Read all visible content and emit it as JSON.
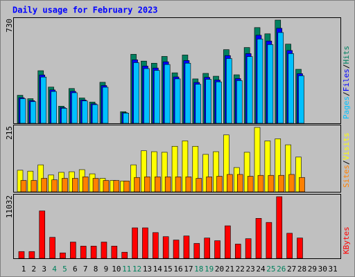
{
  "chart_data": {
    "type": "bar",
    "title": "Daily usage for February 2023",
    "separator": "/",
    "categories": [
      "1",
      "2",
      "3",
      "4",
      "5",
      "6",
      "7",
      "8",
      "9",
      "10",
      "11",
      "12",
      "13",
      "14",
      "15",
      "16",
      "17",
      "18",
      "19",
      "20",
      "21",
      "22",
      "23",
      "24",
      "25",
      "26",
      "27",
      "28",
      "29",
      "30",
      "31"
    ],
    "weekend": [
      false,
      false,
      false,
      true,
      true,
      false,
      false,
      false,
      false,
      false,
      true,
      true,
      false,
      false,
      false,
      false,
      false,
      true,
      true,
      false,
      false,
      false,
      false,
      false,
      true,
      true,
      false,
      false,
      false,
      false,
      false
    ],
    "weekend_color": "#00805c",
    "panels": [
      {
        "ylim": [
          0,
          730
        ],
        "yticks": [
          730
        ],
        "series": [
          {
            "name": "Hits",
            "color": "#008060",
            "values": [
              198,
              174,
              372,
              256,
              121,
              246,
              179,
              150,
              290,
              0,
              82,
              488,
              440,
              425,
              473,
              357,
              483,
              314,
              353,
              333,
              521,
              343,
              536,
              677,
              633,
              730,
              560,
              382,
              null,
              null,
              null
            ]
          },
          {
            "name": "Files",
            "color": "#0000ff",
            "values": [
              181,
              160,
              342,
              236,
              111,
              226,
              165,
              138,
              267,
              0,
              75,
              449,
              405,
              391,
              435,
              328,
              444,
              289,
              325,
              306,
              479,
              316,
              493,
              623,
              582,
              672,
              515,
              351,
              null,
              null,
              null
            ]
          },
          {
            "name": "Pages",
            "color": "#00c0ff",
            "values": [
              174,
              153,
              327,
              225,
              106,
              216,
              158,
              132,
              255,
              0,
              72,
              429,
              387,
              374,
              416,
              314,
              425,
              276,
              311,
              293,
              458,
              302,
              472,
              596,
              557,
              642,
              493,
              336,
              null,
              null,
              null
            ]
          }
        ]
      },
      {
        "ylim": [
          0,
          215
        ],
        "yticks": [
          215
        ],
        "series": [
          {
            "name": "Visits",
            "color": "#ffff00",
            "values": [
              72,
              69,
              90,
              56,
              65,
              67,
              74,
              60,
              45,
              38,
              36,
              90,
              137,
              134,
              132,
              152,
              170,
              152,
              125,
              134,
              190,
              81,
              132,
              215,
              170,
              177,
              157,
              116,
              null,
              null,
              null
            ]
          },
          {
            "name": "Sites",
            "color": "#ff8000",
            "values": [
              38,
              38,
              45,
              40,
              45,
              45,
              50,
              45,
              38,
              38,
              36,
              48,
              50,
              50,
              50,
              50,
              50,
              45,
              50,
              52,
              58,
              58,
              52,
              55,
              55,
              55,
              58,
              48,
              null,
              null,
              null
            ]
          }
        ]
      },
      {
        "ylim": [
          0,
          11032
        ],
        "yticks": [
          11032
        ],
        "series": [
          {
            "name": "KBytes",
            "color": "#ff0000",
            "values": [
              1212,
              1212,
              8484,
              3757,
              970,
              2909,
              2182,
              2182,
              2909,
              2182,
              1091,
              5455,
              5455,
              4606,
              3879,
              3273,
              4000,
              2667,
              3636,
              3152,
              5818,
              2546,
              3515,
              7152,
              6425,
              11032,
              4485,
              3636,
              null,
              null,
              null
            ]
          }
        ]
      }
    ]
  }
}
